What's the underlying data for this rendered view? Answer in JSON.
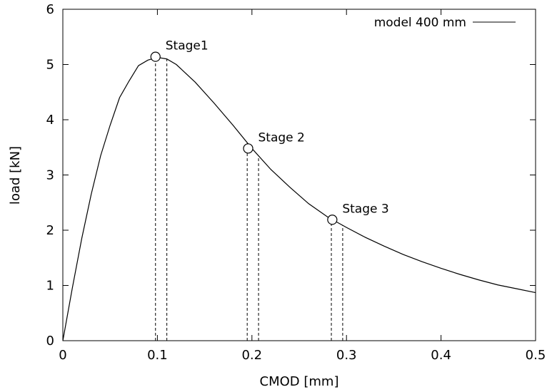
{
  "chart_data": {
    "type": "line",
    "xlabel": "CMOD [mm]",
    "ylabel": "load [kN]",
    "xlim": [
      0,
      0.5
    ],
    "ylim": [
      0,
      6
    ],
    "x_ticks": [
      0,
      0.1,
      0.2,
      0.3,
      0.4,
      0.5
    ],
    "x_tick_labels": [
      "0",
      "0.1",
      "0.2",
      "0.3",
      "0.4",
      "0.5"
    ],
    "y_ticks": [
      0,
      1,
      2,
      3,
      4,
      5,
      6
    ],
    "y_tick_labels": [
      "0",
      "1",
      "2",
      "3",
      "4",
      "5",
      "6"
    ],
    "grid": false,
    "legend_position": "top-right",
    "series": [
      {
        "name": "model 400 mm",
        "color": "#000000",
        "x": [
          0,
          0.01,
          0.02,
          0.03,
          0.04,
          0.05,
          0.06,
          0.07,
          0.08,
          0.09,
          0.1,
          0.11,
          0.12,
          0.14,
          0.16,
          0.18,
          0.2,
          0.22,
          0.24,
          0.26,
          0.28,
          0.3,
          0.32,
          0.34,
          0.36,
          0.38,
          0.4,
          0.42,
          0.44,
          0.46,
          0.48,
          0.5
        ],
        "y": [
          0,
          0.95,
          1.85,
          2.65,
          3.35,
          3.9,
          4.4,
          4.7,
          4.98,
          5.08,
          5.13,
          5.1,
          5.0,
          4.68,
          4.3,
          3.9,
          3.48,
          3.1,
          2.78,
          2.48,
          2.24,
          2.05,
          1.87,
          1.71,
          1.56,
          1.43,
          1.31,
          1.2,
          1.1,
          1.01,
          0.94,
          0.87
        ]
      }
    ],
    "annotations": [
      {
        "label": "Stage1",
        "x": 0.098,
        "y": 5.14,
        "dash_x": [
          0.098,
          0.11
        ]
      },
      {
        "label": "Stage 2",
        "x": 0.196,
        "y": 3.48,
        "dash_x": [
          0.195,
          0.207
        ]
      },
      {
        "label": "Stage 3",
        "x": 0.285,
        "y": 2.19,
        "dash_x": [
          0.284,
          0.296
        ]
      }
    ]
  }
}
